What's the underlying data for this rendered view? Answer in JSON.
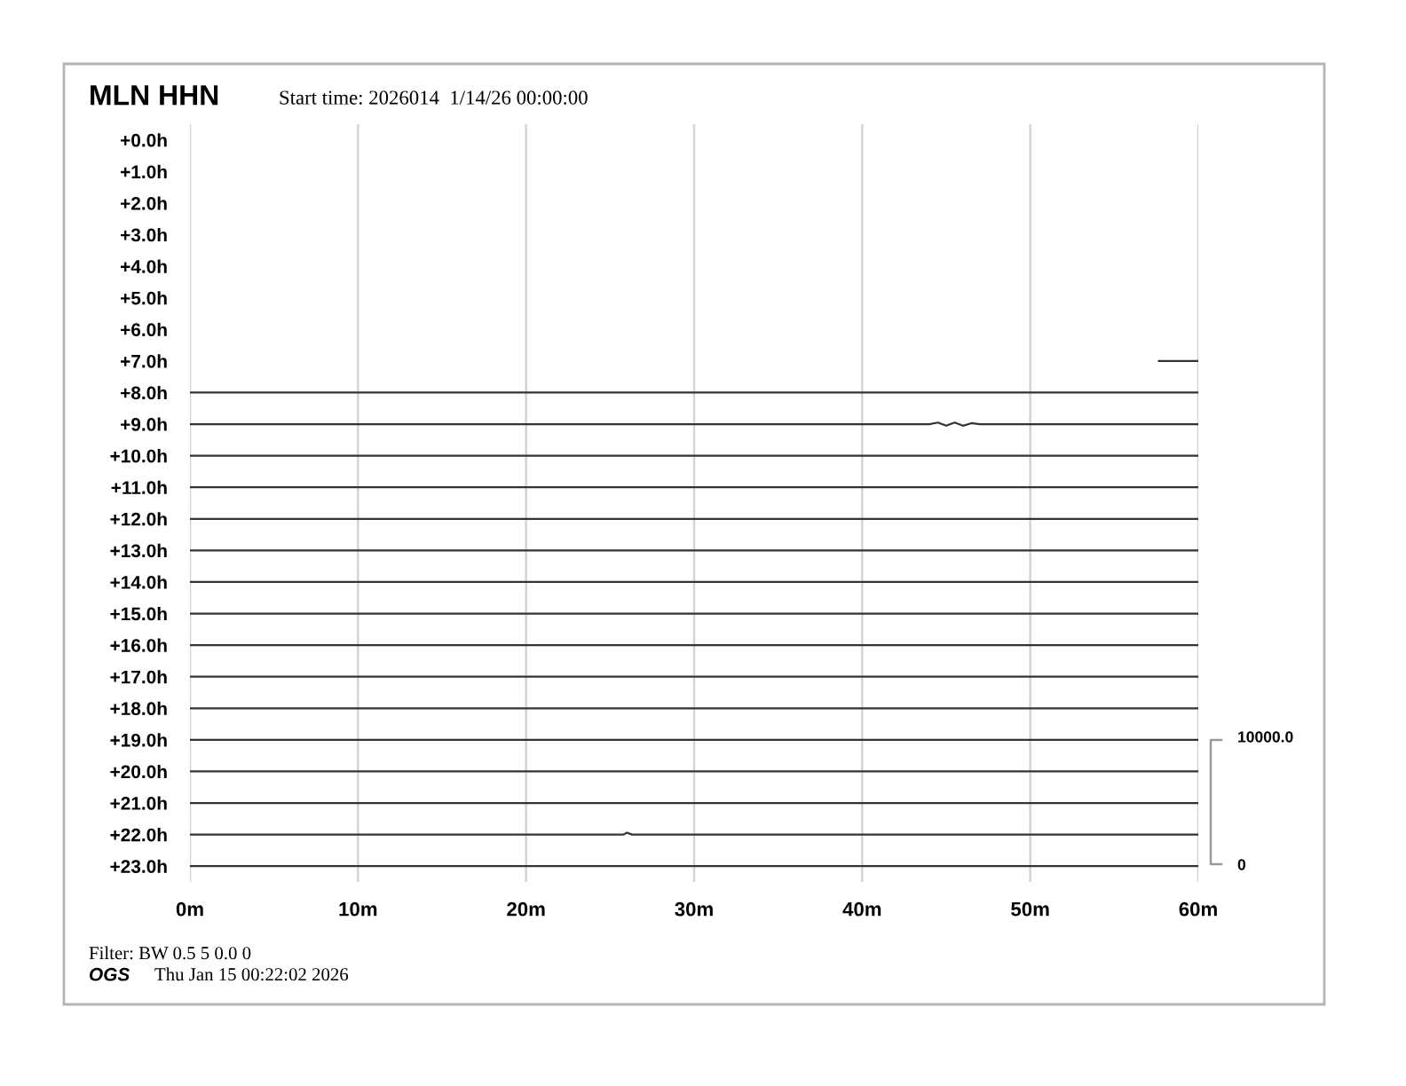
{
  "chart_data": {
    "type": "line",
    "title": "MLN HHN",
    "subtitle": "Start time: 2026014  1/14/26 00:00:00",
    "xlim": [
      0,
      60
    ],
    "xticks": [
      {
        "value": 0,
        "label": "0m"
      },
      {
        "value": 10,
        "label": "10m"
      },
      {
        "value": 20,
        "label": "20m"
      },
      {
        "value": 30,
        "label": "30m"
      },
      {
        "value": 40,
        "label": "40m"
      },
      {
        "value": 50,
        "label": "50m"
      },
      {
        "value": 60,
        "label": "60m"
      }
    ],
    "ylim": [
      23.5,
      -0.5
    ],
    "yticks": [
      {
        "value": 0,
        "label": "+0.0h"
      },
      {
        "value": 1,
        "label": "+1.0h"
      },
      {
        "value": 2,
        "label": "+2.0h"
      },
      {
        "value": 3,
        "label": "+3.0h"
      },
      {
        "value": 4,
        "label": "+4.0h"
      },
      {
        "value": 5,
        "label": "+5.0h"
      },
      {
        "value": 6,
        "label": "+6.0h"
      },
      {
        "value": 7,
        "label": "+7.0h"
      },
      {
        "value": 8,
        "label": "+8.0h"
      },
      {
        "value": 9,
        "label": "+9.0h"
      },
      {
        "value": 10,
        "label": "+10.0h"
      },
      {
        "value": 11,
        "label": "+11.0h"
      },
      {
        "value": 12,
        "label": "+12.0h"
      },
      {
        "value": 13,
        "label": "+13.0h"
      },
      {
        "value": 14,
        "label": "+14.0h"
      },
      {
        "value": 15,
        "label": "+15.0h"
      },
      {
        "value": 16,
        "label": "+16.0h"
      },
      {
        "value": 17,
        "label": "+17.0h"
      },
      {
        "value": 18,
        "label": "+18.0h"
      },
      {
        "value": 19,
        "label": "+19.0h"
      },
      {
        "value": 20,
        "label": "+20.0h"
      },
      {
        "value": 21,
        "label": "+21.0h"
      },
      {
        "value": 22,
        "label": "+22.0h"
      },
      {
        "value": 23,
        "label": "+23.0h"
      }
    ],
    "grid": "x",
    "series": [
      {
        "color": "#333333",
        "x": [
          57.6,
          60
        ],
        "values": [
          7,
          7
        ]
      },
      {
        "color": "#333333",
        "x": [
          0,
          60
        ],
        "values": [
          8,
          8
        ]
      },
      {
        "color": "#333333",
        "x": [
          0,
          44,
          44.5,
          45,
          45.5,
          46,
          46.5,
          47,
          60
        ],
        "values": [
          9,
          9,
          8.95,
          9.05,
          8.95,
          9.05,
          8.97,
          9,
          9
        ]
      },
      {
        "color": "#333333",
        "x": [
          0,
          60
        ],
        "values": [
          10,
          10
        ]
      },
      {
        "color": "#333333",
        "x": [
          0,
          60
        ],
        "values": [
          11,
          11
        ]
      },
      {
        "color": "#333333",
        "x": [
          0,
          60
        ],
        "values": [
          12,
          12
        ]
      },
      {
        "color": "#333333",
        "x": [
          0,
          60
        ],
        "values": [
          13,
          13
        ]
      },
      {
        "color": "#333333",
        "x": [
          0,
          60
        ],
        "values": [
          14,
          14
        ]
      },
      {
        "color": "#333333",
        "x": [
          0,
          60
        ],
        "values": [
          15,
          15
        ]
      },
      {
        "color": "#333333",
        "x": [
          0,
          60
        ],
        "values": [
          16,
          16
        ]
      },
      {
        "color": "#333333",
        "x": [
          0,
          60
        ],
        "values": [
          17,
          17
        ]
      },
      {
        "color": "#333333",
        "x": [
          0,
          60
        ],
        "values": [
          18,
          18
        ]
      },
      {
        "color": "#333333",
        "x": [
          0,
          60
        ],
        "values": [
          19,
          19
        ]
      },
      {
        "color": "#333333",
        "x": [
          0,
          60
        ],
        "values": [
          20,
          20
        ]
      },
      {
        "color": "#333333",
        "x": [
          0,
          60
        ],
        "values": [
          21,
          21
        ]
      },
      {
        "color": "#333333",
        "x": [
          0,
          25.8,
          26.0,
          26.3,
          60
        ],
        "values": [
          22,
          22,
          21.94,
          22,
          22
        ]
      },
      {
        "color": "#333333",
        "x": [
          0,
          60
        ],
        "values": [
          23,
          23
        ]
      }
    ],
    "annotations": [
      "Filter: BW 0.5 5 0.0 0",
      "OGS",
      "Thu Jan 15 00:22:02 2026",
      "10000.0",
      "0"
    ]
  }
}
